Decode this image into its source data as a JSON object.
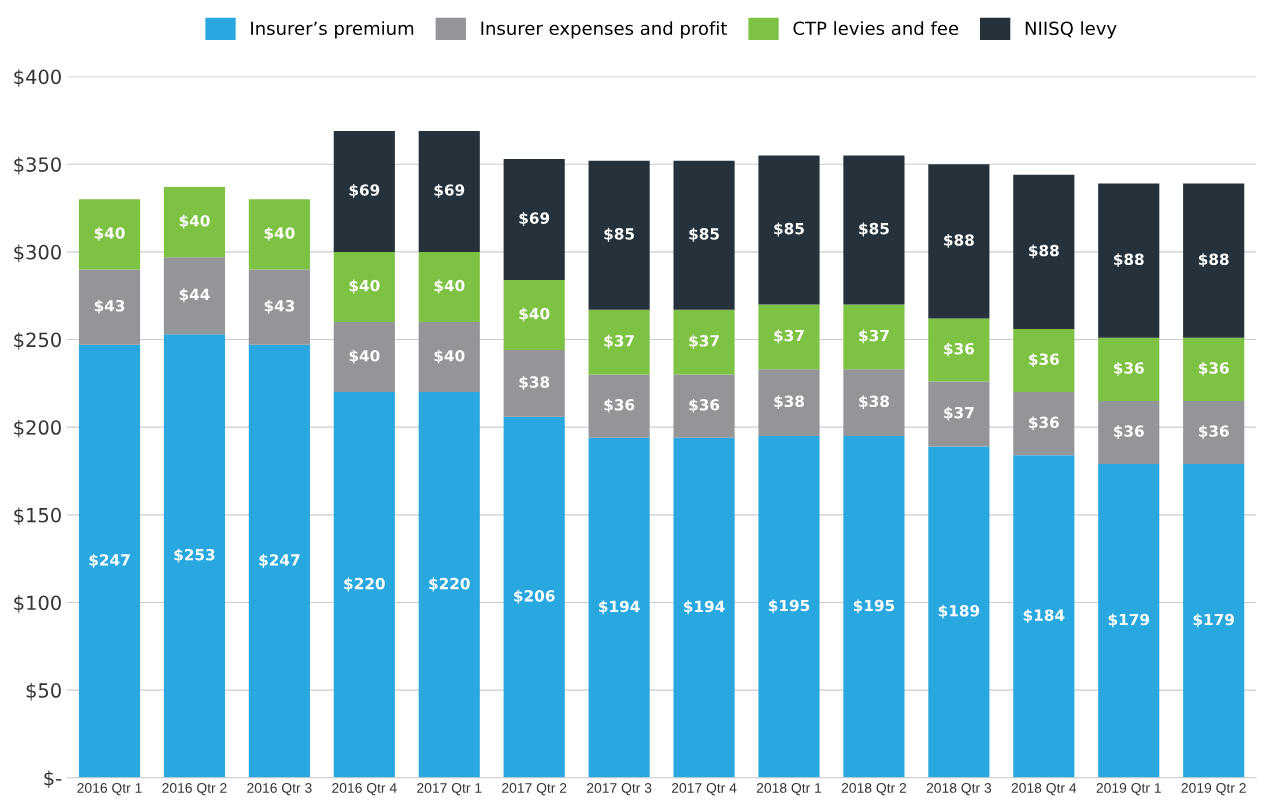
{
  "chart_data": {
    "type": "bar",
    "stacked": true,
    "categories": [
      "2016 Qtr 1",
      "2016 Qtr 2",
      "2016 Qtr 3",
      "2016 Qtr 4",
      "2017 Qtr 1",
      "2017 Qtr 2",
      "2017 Qtr 3",
      "2017 Qtr 4",
      "2018 Qtr 1",
      "2018 Qtr 2",
      "2018 Qtr 3",
      "2018 Qtr 4",
      "2019 Qtr 1",
      "2019 Qtr 2"
    ],
    "series": [
      {
        "name": "Insurer’s premium",
        "color": "#29a8e0",
        "values": [
          247,
          253,
          247,
          220,
          220,
          206,
          194,
          194,
          195,
          195,
          189,
          184,
          179,
          179
        ],
        "value_labels": [
          "$247",
          "$253",
          "$247",
          "$220",
          "$220",
          "$206",
          "$194",
          "$194",
          "$195",
          "$195",
          "$189",
          "$184",
          "$179",
          "$179"
        ]
      },
      {
        "name": "Insurer expenses and profit",
        "color": "#939598",
        "values": [
          43,
          44,
          43,
          40,
          40,
          38,
          36,
          36,
          38,
          38,
          37,
          36,
          36,
          36
        ],
        "value_labels": [
          "$43",
          "$44",
          "$43",
          "$40",
          "$40",
          "$38",
          "$36",
          "$36",
          "$38",
          "$38",
          "$37",
          "$36",
          "$36",
          "$36"
        ]
      },
      {
        "name": "CTP levies and fee",
        "color": "#7dc242",
        "values": [
          40,
          40,
          40,
          40,
          40,
          40,
          37,
          37,
          37,
          37,
          36,
          36,
          36,
          36
        ],
        "value_labels": [
          "$40",
          "$40",
          "$40",
          "$40",
          "$40",
          "$40",
          "$37",
          "$37",
          "$37",
          "$37",
          "$36",
          "$36",
          "$36",
          "$36"
        ]
      },
      {
        "name": "NIISQ levy",
        "color": "#25313b",
        "values": [
          null,
          null,
          null,
          69,
          69,
          69,
          85,
          85,
          85,
          85,
          88,
          88,
          88,
          88
        ],
        "value_labels": [
          null,
          null,
          null,
          "$69",
          "$69",
          "$69",
          "$85",
          "$85",
          "$85",
          "$85",
          "$88",
          "$88",
          "$88",
          "$88"
        ]
      }
    ],
    "ylim": [
      0,
      400
    ],
    "yticks": [
      {
        "value": 0,
        "label": "$-"
      },
      {
        "value": 50,
        "label": "$50"
      },
      {
        "value": 100,
        "label": "$100"
      },
      {
        "value": 150,
        "label": "$150"
      },
      {
        "value": 200,
        "label": "$200"
      },
      {
        "value": 250,
        "label": "$250"
      },
      {
        "value": 300,
        "label": "$300"
      },
      {
        "value": 350,
        "label": "$350"
      },
      {
        "value": 400,
        "label": "$400"
      }
    ],
    "grid": "y",
    "legend": "top"
  }
}
